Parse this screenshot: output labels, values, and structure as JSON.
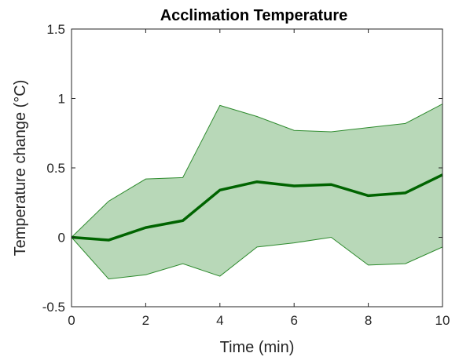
{
  "chart_data": {
    "type": "area",
    "title": "Acclimation Temperature",
    "xlabel": "Time (min)",
    "ylabel": "Temperature change (°C)",
    "xlim": [
      0,
      10
    ],
    "ylim": [
      -0.5,
      1.5
    ],
    "x_ticks": [
      0,
      2,
      4,
      6,
      8,
      10
    ],
    "y_ticks": [
      -0.5,
      0,
      0.5,
      1,
      1.5
    ],
    "x_tick_labels": [
      "0",
      "2",
      "4",
      "6",
      "8",
      "10"
    ],
    "y_tick_labels": [
      "-0.5",
      "0",
      "0.5",
      "1",
      "1.5"
    ],
    "grid": false,
    "legend": "none",
    "x": [
      0,
      1,
      2,
      3,
      4,
      5,
      6,
      7,
      8,
      9,
      10
    ],
    "series": [
      {
        "role": "mean",
        "values": [
          0.0,
          -0.02,
          0.07,
          0.12,
          0.34,
          0.4,
          0.37,
          0.38,
          0.3,
          0.32,
          0.45
        ],
        "color": "#006400"
      },
      {
        "role": "upper-bound",
        "values": [
          0.0,
          0.26,
          0.42,
          0.43,
          0.95,
          0.87,
          0.77,
          0.76,
          0.79,
          0.82,
          0.96
        ],
        "color": "#2e8b2e"
      },
      {
        "role": "lower-bound",
        "values": [
          0.0,
          -0.3,
          -0.27,
          -0.19,
          -0.28,
          -0.07,
          -0.04,
          0.0,
          -0.2,
          -0.19,
          -0.07
        ],
        "color": "#2e8b2e"
      }
    ],
    "colors": {
      "band_fill": "#b8d8b8",
      "band_edge": "#2e8b2e",
      "mean_line": "#006400",
      "axes": "#262626"
    }
  }
}
